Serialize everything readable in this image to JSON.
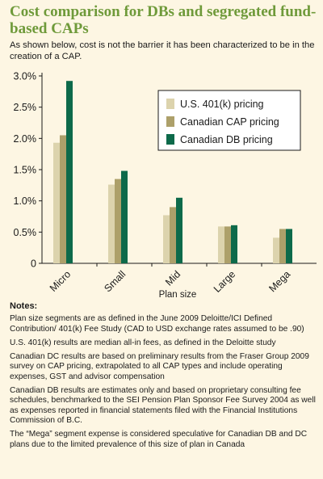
{
  "title": "Cost comparison for DBs and segregated fund-based CAPs",
  "subtitle": "As shown below, cost is not the barrier it has been characterized to be in the creation of a CAP.",
  "colors": {
    "background": "#fdf6e3",
    "title": "#6f9a3a"
  },
  "chart_data": {
    "type": "bar",
    "title": "",
    "xlabel": "Plan size",
    "ylabel": "",
    "categories": [
      "Micro",
      "Small",
      "Mid",
      "Large",
      "Mega"
    ],
    "series": [
      {
        "name": "U.S. 401(k) pricing",
        "color": "#dcd3ad",
        "values": [
          1.93,
          1.26,
          0.77,
          0.59,
          0.41
        ]
      },
      {
        "name": "Canadian CAP pricing",
        "color": "#ada06a",
        "values": [
          2.05,
          1.35,
          0.9,
          0.59,
          0.55
        ]
      },
      {
        "name": "Canadian DB pricing",
        "color": "#0d6a4a",
        "values": [
          2.92,
          1.48,
          1.05,
          0.61,
          0.55
        ]
      }
    ],
    "ylim": [
      0,
      3.0
    ],
    "yticks": [
      {
        "value": 0,
        "label": "0"
      },
      {
        "value": 0.5,
        "label": "0.5%"
      },
      {
        "value": 1.0,
        "label": "1.0%"
      },
      {
        "value": 1.5,
        "label": "1.5%"
      },
      {
        "value": 2.0,
        "label": "2.0%"
      },
      {
        "value": 2.5,
        "label": "2.5%"
      },
      {
        "value": 3.0,
        "label": "3.0%"
      }
    ],
    "grid": false,
    "legend_position": "top-right"
  },
  "notes": {
    "heading": "Notes:",
    "items": [
      "Plan size segments are as defined in the June 2009 Deloitte/ICI Defined Contribution/ 401(k) Fee Study (CAD to USD exchange rates assumed to be .90)",
      "U.S. 401(k) results are median all-in fees, as defined in the Deloitte study",
      "Canadian DC results are based on preliminary results from the Fraser Group 2009 survey on CAP pricing, extrapolated to all CAP types and include operating expenses, GST and advisor compensation",
      "Canadian DB results are estimates only and based on proprietary consulting fee schedules, benchmarked to the SEI Pension Plan Sponsor Fee Survey 2004 as well as expenses reported in financial statements filed with the Financial Institutions Commission of B.C.",
      "The “Mega” segment expense is considered speculative for Canadian DB and DC plans due to the limited prevalence of this size of plan in Canada"
    ]
  }
}
